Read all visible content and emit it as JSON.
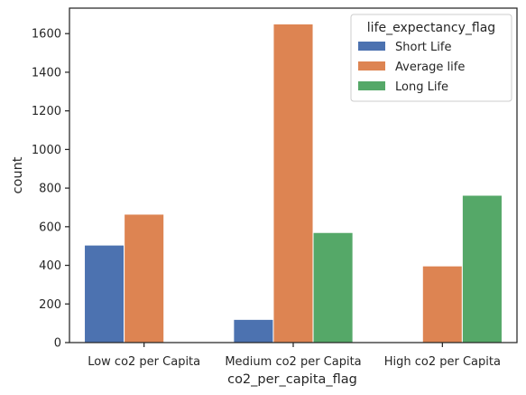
{
  "chart_data": {
    "type": "bar",
    "categories": [
      "Low co2 per Capita",
      "Medium co2 per Capita",
      "High co2 per Capita"
    ],
    "series": [
      {
        "name": "Short Life",
        "color": "#4c72b0",
        "values": [
          505,
          120,
          null
        ]
      },
      {
        "name": "Average life",
        "color": "#dd8452",
        "values": [
          665,
          1650,
          397
        ]
      },
      {
        "name": "Long Life",
        "color": "#55a868",
        "values": [
          null,
          570,
          763
        ]
      }
    ],
    "xlabel": "co2_per_capita_flag",
    "ylabel": "count",
    "ylim": [
      0,
      1732
    ],
    "yticks": [
      0,
      200,
      400,
      600,
      800,
      1000,
      1200,
      1400,
      1600
    ],
    "legend": {
      "title": "life_expectancy_flag",
      "position": "top-right"
    },
    "grid": false
  }
}
